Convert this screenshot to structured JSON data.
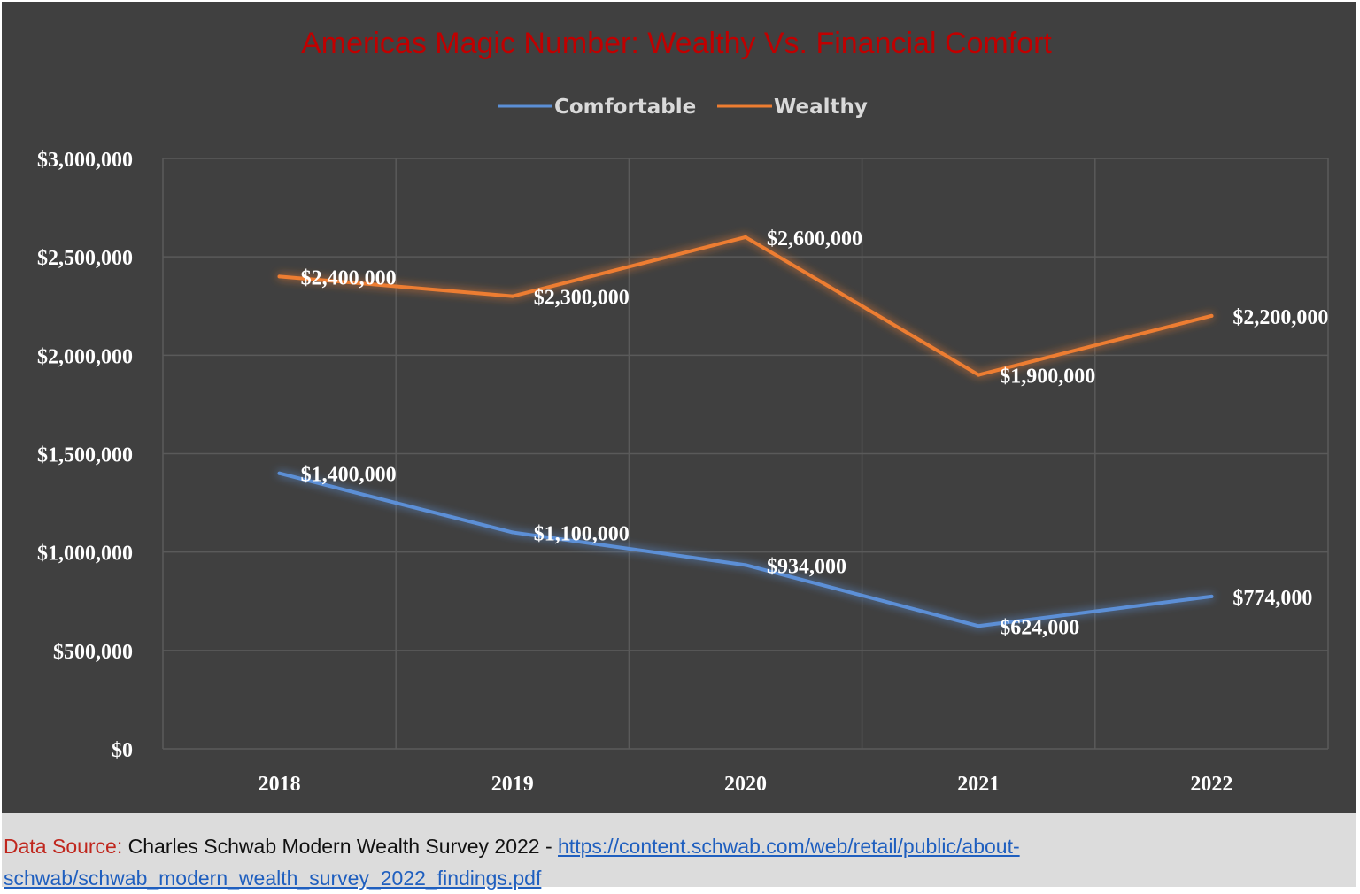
{
  "chart_data": {
    "type": "line",
    "title": "Americas Magic Number: Wealthy Vs. Financial Comfort",
    "categories": [
      "2018",
      "2019",
      "2020",
      "2021",
      "2022"
    ],
    "series": [
      {
        "name": "Comfortable",
        "color": "#5b8fd6",
        "values": [
          1400000,
          1100000,
          934000,
          624000,
          774000
        ],
        "labels": [
          "$1,400,000",
          "$1,100,000",
          "$934,000",
          "$624,000",
          "$774,000"
        ]
      },
      {
        "name": "Wealthy",
        "color": "#ed7d31",
        "values": [
          2400000,
          2300000,
          2600000,
          1900000,
          2200000
        ],
        "labels": [
          "$2,400,000",
          "$2,300,000",
          "$2,600,000",
          "$1,900,000",
          "$2,200,000"
        ]
      }
    ],
    "ylim": [
      0,
      3000000
    ],
    "yticks": [
      0,
      500000,
      1000000,
      1500000,
      2000000,
      2500000,
      3000000
    ],
    "ytick_labels": [
      "$0",
      "$500,000",
      "$1,000,000",
      "$1,500,000",
      "$2,000,000",
      "$2,500,000",
      "$3,000,000"
    ],
    "xlabel": "",
    "ylabel": "",
    "grid": true,
    "legend_position": "top-center"
  },
  "colors": {
    "background": "#404040",
    "title": "#c00000",
    "text": "#ffffff",
    "grid": "#5a5a5a"
  },
  "footer": {
    "source_label": "Data Source:",
    "source_text": " Charles Schwab Modern Wealth Survey 2022 - ",
    "source_link": "https://content.schwab.com/web/retail/public/about-schwab/schwab_modern_wealth_survey_2022_findings.pdf"
  }
}
